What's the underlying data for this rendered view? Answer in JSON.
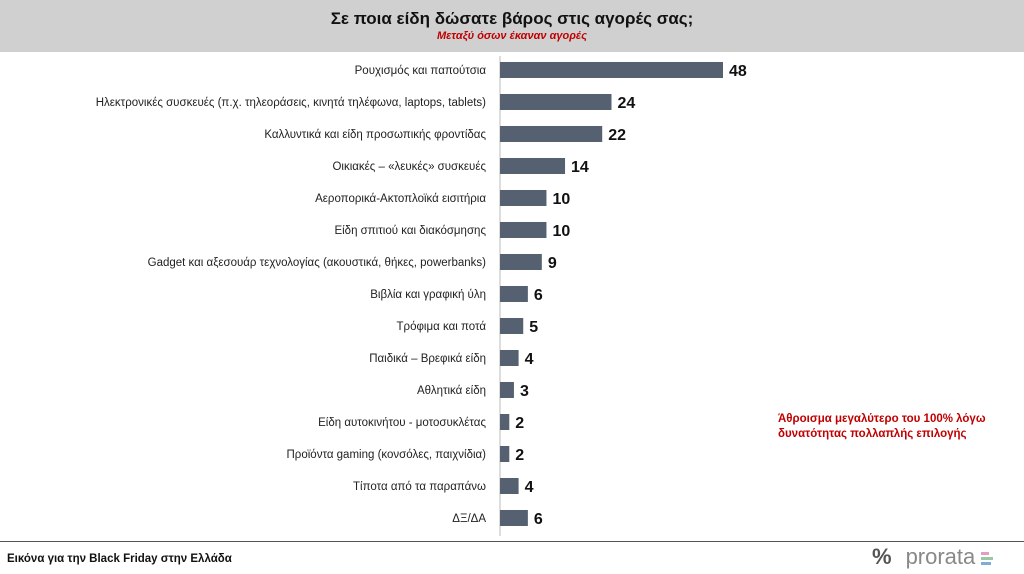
{
  "header": {
    "title": "Σε ποια είδη δώσατε βάρος στις αγορές σας;",
    "subtitle": "Μεταξύ όσων έκαναν αγορές"
  },
  "note": {
    "line1": "Άθροισμα μεγαλύτερο  του 100% λόγω",
    "line2": "δυνατότητας πολλαπλής  επιλογής"
  },
  "footer": {
    "text": "Εικόνα για την Black Friday στην Ελλάδα",
    "logo_text": "prorata",
    "logo_symbol": "%"
  },
  "colors": {
    "bar": "#556070",
    "accent": "#c00000"
  },
  "chart_data": {
    "type": "bar",
    "orientation": "horizontal",
    "title": "Σε ποια είδη δώσατε βάρος στις αγορές σας;",
    "subtitle": "Μεταξύ όσων έκαναν αγορές",
    "categories": [
      "Ρουχισμός και παπούτσια",
      "Ηλεκτρονικές συσκευές  (π.χ. τηλεοράσεις, κινητά τηλέφωνα, laptops, tablets)",
      "Καλλυντικά και είδη προσωπικής  φροντίδας",
      "Οικιακές – «λευκές» συσκευές",
      "Αεροπορικά-Ακτοπλοϊκά εισιτήρια",
      "Είδη σπιτιού και διακόσμησης",
      "Gadget και αξεσουάρ τεχνολογίας (ακουστικά, θήκες, powerbanks)",
      "Βιβλία και γραφική ύλη",
      "Τρόφιμα και ποτά",
      "Παιδικά – Βρεφικά είδη",
      "Αθλητικά είδη",
      "Είδη αυτοκινήτου - μοτοσυκλέτας",
      "Προϊόντα gaming  (κονσόλες, παιχνίδια)",
      "Τίποτα από τα παραπάνω",
      "ΔΞ/ΔΑ"
    ],
    "values": [
      48,
      24,
      22,
      14,
      10,
      10,
      9,
      6,
      5,
      4,
      3,
      2,
      2,
      4,
      6
    ],
    "xlim": [
      0,
      50
    ],
    "grid": false
  }
}
